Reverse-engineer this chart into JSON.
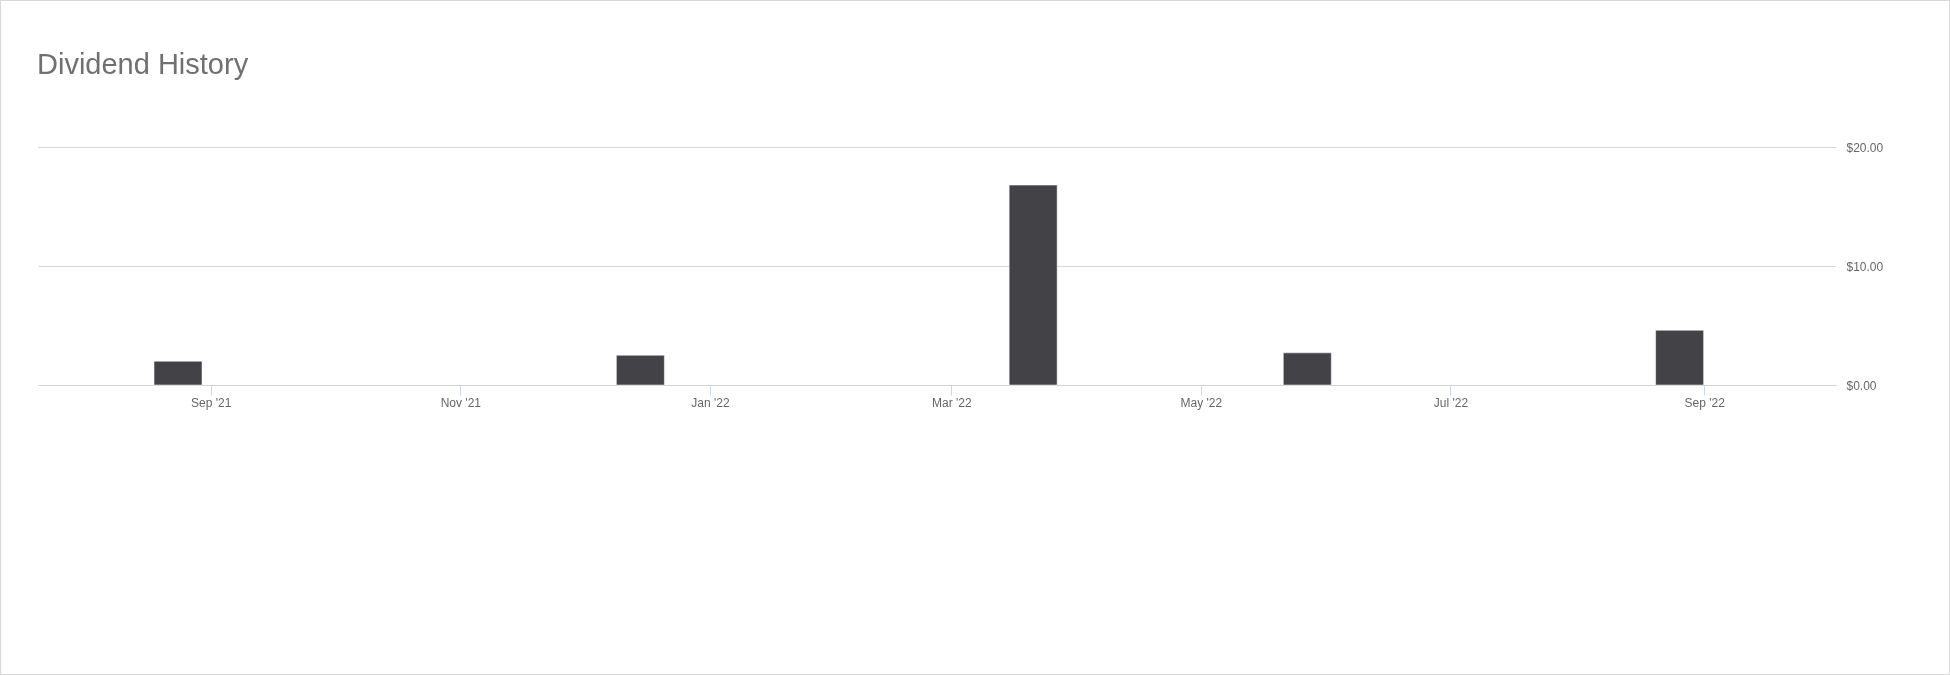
{
  "chart_data": {
    "type": "bar",
    "title": "Dividend History",
    "x": [
      "2021-08-24",
      "2021-12-15",
      "2022-03-21",
      "2022-05-27",
      "2022-08-26"
    ],
    "values": [
      2.0,
      2.5,
      16.8,
      2.7,
      4.6
    ],
    "color": "#434247",
    "xlim": [
      "2021-07-22",
      "2022-10-02"
    ],
    "xticks": [
      {
        "value": "2021-09-01",
        "label": "Sep '21"
      },
      {
        "value": "2021-11-01",
        "label": "Nov '21"
      },
      {
        "value": "2022-01-01",
        "label": "Jan '22"
      },
      {
        "value": "2022-03-01",
        "label": "Mar '22"
      },
      {
        "value": "2022-05-01",
        "label": "May '22"
      },
      {
        "value": "2022-07-01",
        "label": "Jul '22"
      },
      {
        "value": "2022-09-01",
        "label": "Sep '22"
      }
    ],
    "ylim": [
      0,
      20
    ],
    "yticks": [
      {
        "value": 0,
        "label": "$0.00"
      },
      {
        "value": 10,
        "label": "$10.00"
      },
      {
        "value": 20,
        "label": "$20.00"
      }
    ],
    "grid": "y"
  }
}
